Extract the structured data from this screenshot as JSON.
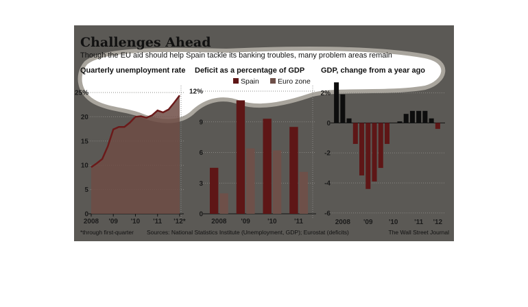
{
  "header": {
    "title": "Challenges Ahead",
    "subtitle": "Though the EU aid should help Spain tackle its banking troubles, many problem areas remain"
  },
  "chart_data": [
    {
      "type": "area",
      "title": "Quarterly unemployment rate",
      "color": "#6b1a1a",
      "fill": "#6e4c45",
      "x": [
        2008,
        2008.25,
        2008.5,
        2008.75,
        2009,
        2009.25,
        2009.5,
        2009.75,
        2010,
        2010.25,
        2010.5,
        2010.75,
        2011,
        2011.25,
        2011.5,
        2011.75,
        2012
      ],
      "values": [
        9.6,
        10.4,
        11.3,
        13.9,
        17.4,
        17.9,
        17.9,
        18.8,
        20.0,
        20.1,
        19.8,
        20.3,
        21.3,
        20.9,
        21.5,
        22.9,
        24.4
      ],
      "xlim": [
        2008,
        2012
      ],
      "xticks": [
        2008,
        {
          "value": 2009,
          "label": "'09"
        },
        {
          "value": 2010,
          "label": "'10"
        },
        {
          "value": 2011,
          "label": "'11"
        },
        {
          "value": 2012,
          "label": "'12*"
        }
      ],
      "ylim": [
        0,
        25
      ],
      "yticks": [
        0,
        5,
        10,
        15,
        20,
        {
          "value": 25,
          "label": "25%"
        }
      ],
      "grid": true
    },
    {
      "type": "bar",
      "title": "Deficit as a percentage of GDP",
      "categories": [
        "2008",
        "'09",
        "'10",
        "'11"
      ],
      "series": [
        {
          "name": "Spain",
          "color": "#5e1616",
          "values": [
            4.5,
            11.1,
            9.3,
            8.5
          ]
        },
        {
          "name": "Euro zone",
          "color": "#6e5049",
          "values": [
            2.0,
            6.4,
            6.2,
            4.1
          ]
        }
      ],
      "ylim": [
        0,
        12
      ],
      "yticks": [
        0,
        3,
        6,
        9,
        {
          "value": 12,
          "label": "12%"
        }
      ],
      "grid": true
    },
    {
      "type": "bar",
      "title": "GDP, change from a year ago",
      "categories": [
        null,
        "2008",
        null,
        null,
        null,
        "'09",
        null,
        null,
        null,
        "'10",
        null,
        null,
        null,
        "'11",
        null,
        null,
        "'12"
      ],
      "values": [
        2.7,
        1.9,
        0.3,
        -1.4,
        -3.5,
        -4.4,
        -3.9,
        -3.0,
        -1.4,
        0.0,
        0.1,
        0.6,
        0.8,
        0.8,
        0.8,
        0.3,
        -0.4
      ],
      "positive_color": "#0d0d0d",
      "negative_color": "#5e1616",
      "ylim": [
        -6.1,
        2.8
      ],
      "yticks": [
        -6,
        -4,
        -2,
        0,
        {
          "value": 2,
          "label": "2%"
        }
      ],
      "grid": true
    }
  ],
  "footer": {
    "note": "*through first-quarter",
    "sources": "Sources: National Statistics Institute (Unemployment, GDP); Eurostat (deficits)",
    "credit": "The Wall Street Journal"
  }
}
